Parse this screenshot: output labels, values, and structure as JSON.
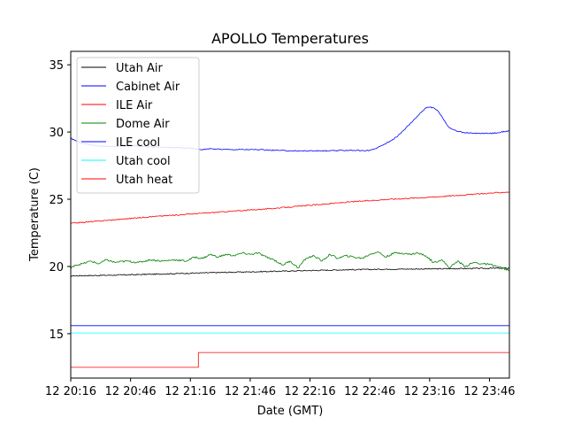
{
  "chart_data": {
    "type": "line",
    "title": "APOLLO Temperatures",
    "xlabel": "Date (GMT)",
    "ylabel": "Temperature (C)",
    "xlim": [
      0,
      220
    ],
    "ylim": [
      11.7,
      36.0
    ],
    "x_ticks": [
      {
        "x": 0,
        "label": "12 20:16"
      },
      {
        "x": 30,
        "label": "12 20:46"
      },
      {
        "x": 60,
        "label": "12 21:16"
      },
      {
        "x": 90,
        "label": "12 21:46"
      },
      {
        "x": 120,
        "label": "12 22:16"
      },
      {
        "x": 150,
        "label": "12 22:46"
      },
      {
        "x": 180,
        "label": "12 23:16"
      },
      {
        "x": 210,
        "label": "12 23:46"
      }
    ],
    "y_ticks": [
      15,
      20,
      25,
      30,
      35
    ],
    "legend_position": "upper-left",
    "series": [
      {
        "name": "Utah Air",
        "color": "#000000",
        "x": [
          -1,
          20,
          40,
          60,
          80,
          100,
          120,
          140,
          160,
          180,
          200,
          220
        ],
        "y": [
          19.3,
          19.35,
          19.42,
          19.5,
          19.57,
          19.63,
          19.7,
          19.76,
          19.8,
          19.82,
          19.85,
          19.88
        ],
        "noise": 0.04
      },
      {
        "name": "Cabinet Air",
        "color": "#0000ff",
        "x": [
          -1,
          220
        ],
        "y": [
          15.6,
          15.6
        ],
        "noise": 0
      },
      {
        "name": "ILE Air",
        "color": "#ff0000",
        "x": [
          -1,
          20,
          40,
          60,
          80,
          100,
          120,
          140,
          160,
          180,
          200,
          220
        ],
        "y": [
          23.2,
          23.45,
          23.7,
          23.9,
          24.1,
          24.3,
          24.55,
          24.8,
          25.0,
          25.15,
          25.35,
          25.55
        ],
        "noise": 0.04
      },
      {
        "name": "Dome Air",
        "color": "#008000",
        "x": [
          -1,
          2,
          6,
          10,
          14,
          18,
          22,
          28,
          34,
          40,
          46,
          52,
          58,
          62,
          66,
          70,
          74,
          78,
          82,
          86,
          90,
          94,
          98,
          102,
          106,
          110,
          114,
          118,
          122,
          126,
          130,
          134,
          138,
          142,
          146,
          150,
          154,
          158,
          162,
          166,
          170,
          174,
          178,
          182,
          186,
          190,
          194,
          198,
          202,
          206,
          210,
          214,
          220
        ],
        "y": [
          19.7,
          20.1,
          20.2,
          20.4,
          20.2,
          20.5,
          20.3,
          20.4,
          20.3,
          20.5,
          20.4,
          20.5,
          20.4,
          20.7,
          20.6,
          20.9,
          20.7,
          20.9,
          20.8,
          21.0,
          20.9,
          21.0,
          20.7,
          20.5,
          20.1,
          20.4,
          19.9,
          20.6,
          20.8,
          20.4,
          20.9,
          20.6,
          20.8,
          20.7,
          20.6,
          20.9,
          21.1,
          20.7,
          21.0,
          21.0,
          20.9,
          21.0,
          20.8,
          20.3,
          20.5,
          19.9,
          20.4,
          20.0,
          20.3,
          20.2,
          20.15,
          20.0,
          19.7
        ],
        "noise": 0.07
      },
      {
        "name": "ILE cool",
        "color": "#0000ff",
        "x": [
          -1,
          5,
          12,
          20,
          30,
          40,
          50,
          60,
          65,
          70,
          80,
          90,
          100,
          110,
          120,
          130,
          140,
          148,
          152,
          156,
          160,
          164,
          168,
          172,
          176,
          178,
          180,
          182,
          184,
          186,
          188,
          190,
          194,
          198,
          202,
          206,
          210,
          214,
          220
        ],
        "y": [
          29.6,
          29.2,
          29.0,
          28.9,
          29.0,
          28.9,
          28.85,
          28.8,
          28.7,
          28.75,
          28.7,
          28.7,
          28.65,
          28.6,
          28.6,
          28.6,
          28.65,
          28.6,
          28.7,
          29.0,
          29.3,
          29.7,
          30.3,
          30.9,
          31.5,
          31.8,
          31.85,
          31.8,
          31.6,
          31.2,
          30.7,
          30.3,
          30.05,
          29.95,
          29.9,
          29.9,
          29.9,
          29.95,
          30.1
        ],
        "noise": 0.04
      },
      {
        "name": "Utah cool",
        "color": "#00ffff",
        "x": [
          -1,
          220
        ],
        "y": [
          15.05,
          15.05
        ],
        "noise": 0
      },
      {
        "name": "Utah heat",
        "color": "#ff0000",
        "x": [
          -1,
          64,
          64,
          220
        ],
        "y": [
          12.5,
          12.5,
          13.6,
          13.6
        ],
        "noise": 0
      }
    ]
  }
}
